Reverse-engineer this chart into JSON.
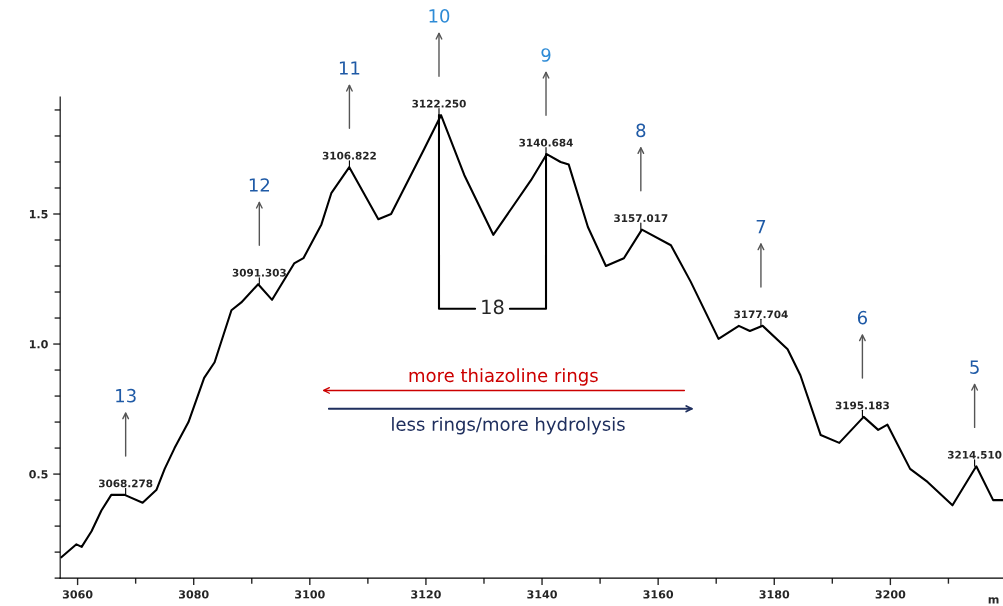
{
  "chart_data": {
    "type": "line",
    "xlabel": "m",
    "x": [
      3057.2,
      3059.8,
      3060.7,
      3062.4,
      3064.1,
      3065.8,
      3068.1,
      3071.2,
      3073.6,
      3075,
      3076.7,
      3079.1,
      3081.8,
      3083.6,
      3086.5,
      3088.2,
      3091.1,
      3093.5,
      3097.3,
      3098.9,
      3102,
      3103.7,
      3106.8,
      3111.8,
      3114,
      3119.7,
      3122.6,
      3126.6,
      3131.6,
      3138.1,
      3140.8,
      3143.2,
      3144.6,
      3147.9,
      3151,
      3154.1,
      3157.2,
      3162.2,
      3165.6,
      3170.4,
      3173.9,
      3175.8,
      3178,
      3182.3,
      3184.5,
      3188,
      3191.2,
      3195.4,
      3197.9,
      3199.5,
      3203.4,
      3206.4,
      3210.7,
      3214.8,
      3217.7,
      3219.4
    ],
    "series": [
      {
        "color": "#000000",
        "values": [
          0.18,
          0.23,
          0.22,
          0.28,
          0.36,
          0.42,
          0.42,
          0.39,
          0.44,
          0.52,
          0.6,
          0.7,
          0.87,
          0.93,
          1.13,
          1.16,
          1.23,
          1.17,
          1.31,
          1.33,
          1.46,
          1.58,
          1.68,
          1.48,
          1.5,
          1.75,
          1.88,
          1.65,
          1.42,
          1.63,
          1.73,
          1.7,
          1.69,
          1.45,
          1.3,
          1.33,
          1.44,
          1.38,
          1.24,
          1.02,
          1.07,
          1.05,
          1.07,
          0.98,
          0.88,
          0.65,
          0.62,
          0.72,
          0.67,
          0.69,
          0.52,
          0.47,
          0.38,
          0.53,
          0.4,
          0.4
        ]
      }
    ],
    "xlim": [
      3057,
      3219.4
    ],
    "ylim": [
      0.1,
      1.95
    ],
    "xticks": [
      3060,
      3080,
      3100,
      3120,
      3140,
      3160,
      3180,
      3200
    ],
    "yticks": [
      0.5,
      {
        "value": 1.0,
        "label": "1.0"
      },
      1.5
    ],
    "grid": false,
    "marker": "none",
    "line_style": "solid",
    "annotations": [
      {
        "text": "3068.278",
        "x": 3068.278,
        "y": 0.42
      },
      {
        "text": "3091.303",
        "x": 3091.303,
        "y": 1.23
      },
      {
        "text": "3106.822",
        "x": 3106.822,
        "y": 1.68
      },
      {
        "text": "3122.250",
        "x": 3122.25,
        "y": 1.88
      },
      {
        "text": "3140.684",
        "x": 3140.684,
        "y": 1.73
      },
      {
        "text": "3157.017",
        "x": 3157.017,
        "y": 1.44
      },
      {
        "text": "3177.704",
        "x": 3177.704,
        "y": 1.07
      },
      {
        "text": "3195.183",
        "x": 3195.183,
        "y": 0.72
      },
      {
        "text": "3214.510",
        "x": 3214.51,
        "y": 0.53
      },
      "13",
      "12",
      "11",
      "10",
      "9",
      "8",
      "7",
      "6",
      "5",
      {
        "text": "18",
        "x": 3122.25,
        "y": 1.88
      },
      "more thiazoline rings",
      "less rings/more hydrolysis"
    ]
  }
}
